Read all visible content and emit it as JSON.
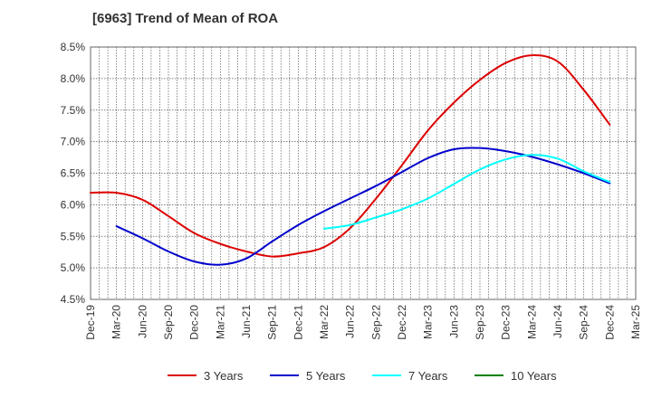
{
  "chart_data": {
    "type": "line",
    "title": "[6963]  Trend of Mean of ROA",
    "xlabel": "",
    "ylabel": "",
    "ylim": [
      4.5,
      8.5
    ],
    "y_ticks": [
      "8.5%",
      "8.0%",
      "7.5%",
      "7.0%",
      "6.5%",
      "6.0%",
      "5.5%",
      "5.0%",
      "4.5%"
    ],
    "y_tick_values": [
      8.5,
      8.0,
      7.5,
      7.0,
      6.5,
      6.0,
      5.5,
      5.0,
      4.5
    ],
    "x_ticks": [
      "Dec-19",
      "Mar-20",
      "Jun-20",
      "Sep-20",
      "Dec-20",
      "Mar-21",
      "Jun-21",
      "Sep-21",
      "Dec-21",
      "Mar-22",
      "Jun-22",
      "Sep-22",
      "Dec-22",
      "Mar-23",
      "Jun-23",
      "Sep-23",
      "Dec-23",
      "Mar-24",
      "Jun-24",
      "Sep-24",
      "Dec-24",
      "Mar-25"
    ],
    "grid": true,
    "legend_position": "bottom",
    "series": [
      {
        "name": "3 Years",
        "color": "#dd0000",
        "start_index": 0,
        "values": [
          6.19,
          6.19,
          6.08,
          5.82,
          5.55,
          5.38,
          5.26,
          5.18,
          5.23,
          5.33,
          5.63,
          6.1,
          6.63,
          7.18,
          7.62,
          7.98,
          8.25,
          8.37,
          8.27,
          7.82,
          7.27
        ]
      },
      {
        "name": "5 Years",
        "color": "#0000cc",
        "start_index": 1,
        "values": [
          5.66,
          5.47,
          5.26,
          5.1,
          5.05,
          5.15,
          5.42,
          5.68,
          5.9,
          6.1,
          6.3,
          6.52,
          6.74,
          6.88,
          6.9,
          6.85,
          6.76,
          6.64,
          6.5,
          6.34
        ]
      },
      {
        "name": "7 Years",
        "color": "#00ffff",
        "start_index": 9,
        "values": [
          5.62,
          5.68,
          5.8,
          5.93,
          6.1,
          6.33,
          6.56,
          6.72,
          6.79,
          6.73,
          6.53,
          6.36
        ]
      },
      {
        "name": "10 Years",
        "color": "#008000",
        "start_index": 0,
        "values": []
      }
    ]
  }
}
